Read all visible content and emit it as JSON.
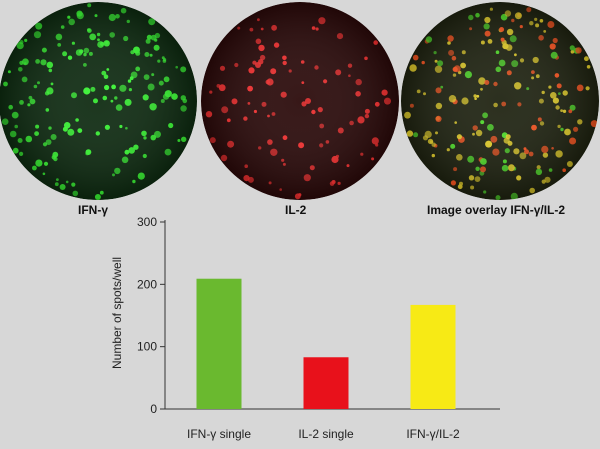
{
  "well_images": [
    {
      "label": "IFN-γ",
      "spot_color": "#39ff33",
      "bg_color": "#0d2a10"
    },
    {
      "label": "IL-2",
      "spot_color": "#ff3030",
      "bg_color": "#2a0909"
    },
    {
      "label": "Image overlay IFN-γ/IL-2",
      "spot_color": "#e8d22a",
      "bg_color": "#1e2210"
    }
  ],
  "chart_data": {
    "type": "bar",
    "categories": [
      "IFN-γ single",
      "IL-2 single",
      "IFN-γ/IL-2"
    ],
    "values": [
      209,
      83,
      167
    ],
    "colors": [
      "#6ab92f",
      "#e8111b",
      "#f7ea15"
    ],
    "title": "",
    "xlabel": "",
    "ylabel": "Number of spots/well",
    "ylim": [
      0,
      300
    ],
    "yticks": [
      0,
      100,
      200,
      300
    ],
    "grid": false,
    "legend": "none"
  }
}
